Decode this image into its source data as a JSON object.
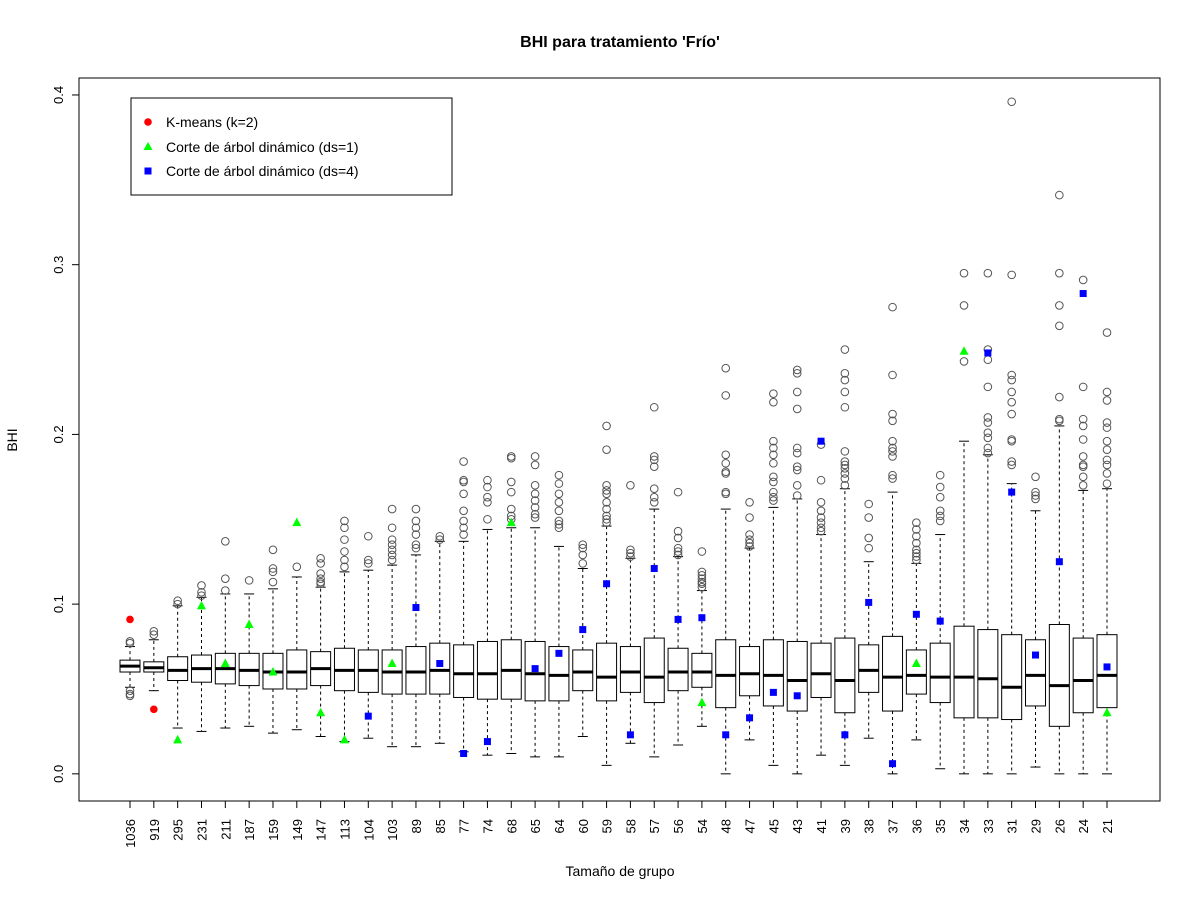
{
  "chart_data": {
    "type": "boxplot",
    "title": "BHI para tratamiento 'Frío'",
    "xlabel": "Tamaño de grupo",
    "ylabel": "BHI",
    "ylim": [
      -0.016,
      0.41
    ],
    "yticks": [
      0.0,
      0.1,
      0.2,
      0.3,
      0.4
    ],
    "ytick_labels": [
      "0.0",
      "0.1",
      "0.2",
      "0.3",
      "0.4"
    ],
    "legend": {
      "position": "top-left",
      "entries": [
        {
          "label": "K-means (k=2)",
          "marker": "circle",
          "color": "#ff0000"
        },
        {
          "label": "Corte de árbol dinámico (ds=1)",
          "marker": "triangle",
          "color": "#00ff00"
        },
        {
          "label": "Corte de árbol dinámico (ds=4)",
          "marker": "square",
          "color": "#0000ff"
        }
      ]
    },
    "colors": {
      "kmeans": "#ff0000",
      "ds1": "#00ff00",
      "ds4": "#0000ff",
      "box": "#000000"
    },
    "categories": [
      "1036",
      "919",
      "295",
      "231",
      "211",
      "187",
      "159",
      "149",
      "147",
      "113",
      "104",
      "103",
      "89",
      "85",
      "77",
      "74",
      "68",
      "65",
      "64",
      "60",
      "59",
      "58",
      "57",
      "56",
      "54",
      "48",
      "47",
      "45",
      "43",
      "41",
      "39",
      "38",
      "37",
      "36",
      "35",
      "34",
      "33",
      "31",
      "29",
      "26",
      "24",
      "21"
    ],
    "boxes": [
      {
        "wlo": 0.051,
        "q1": 0.06,
        "med": 0.0635,
        "q3": 0.067,
        "whi": 0.075,
        "out": [
          0.078,
          0.077,
          0.049,
          0.047,
          0.046
        ]
      },
      {
        "wlo": 0.049,
        "q1": 0.06,
        "med": 0.0625,
        "q3": 0.066,
        "whi": 0.079,
        "out": [
          0.084,
          0.082
        ]
      },
      {
        "wlo": 0.027,
        "q1": 0.055,
        "med": 0.061,
        "q3": 0.069,
        "whi": 0.099,
        "out": [
          0.102,
          0.1
        ]
      },
      {
        "wlo": 0.025,
        "q1": 0.054,
        "med": 0.062,
        "q3": 0.07,
        "whi": 0.104,
        "out": [
          0.111,
          0.107,
          0.105
        ]
      },
      {
        "wlo": 0.027,
        "q1": 0.053,
        "med": 0.062,
        "q3": 0.071,
        "whi": 0.106,
        "out": [
          0.137,
          0.115,
          0.108
        ]
      },
      {
        "wlo": 0.028,
        "q1": 0.052,
        "med": 0.061,
        "q3": 0.071,
        "whi": 0.106,
        "out": [
          0.114
        ]
      },
      {
        "wlo": 0.024,
        "q1": 0.05,
        "med": 0.06,
        "q3": 0.071,
        "whi": 0.109,
        "out": [
          0.132,
          0.121,
          0.119,
          0.113
        ]
      },
      {
        "wlo": 0.026,
        "q1": 0.05,
        "med": 0.06,
        "q3": 0.073,
        "whi": 0.116,
        "out": [
          0.122
        ]
      },
      {
        "wlo": 0.022,
        "q1": 0.052,
        "med": 0.062,
        "q3": 0.072,
        "whi": 0.11,
        "out": [
          0.127,
          0.124,
          0.118,
          0.115,
          0.113,
          0.112
        ]
      },
      {
        "wlo": 0.019,
        "q1": 0.049,
        "med": 0.061,
        "q3": 0.074,
        "whi": 0.119,
        "out": [
          0.149,
          0.145,
          0.138,
          0.131,
          0.126,
          0.122
        ]
      },
      {
        "wlo": 0.021,
        "q1": 0.048,
        "med": 0.061,
        "q3": 0.073,
        "whi": 0.12,
        "out": [
          0.14,
          0.126,
          0.124
        ]
      },
      {
        "wlo": 0.016,
        "q1": 0.047,
        "med": 0.06,
        "q3": 0.073,
        "whi": 0.123,
        "out": [
          0.156,
          0.145,
          0.138,
          0.135,
          0.132,
          0.129,
          0.126
        ]
      },
      {
        "wlo": 0.016,
        "q1": 0.047,
        "med": 0.06,
        "q3": 0.075,
        "whi": 0.129,
        "out": [
          0.156,
          0.149,
          0.145,
          0.141,
          0.135,
          0.133
        ]
      },
      {
        "wlo": 0.018,
        "q1": 0.047,
        "med": 0.061,
        "q3": 0.077,
        "whi": 0.137,
        "out": [
          0.14,
          0.138
        ]
      },
      {
        "wlo": 0.013,
        "q1": 0.045,
        "med": 0.059,
        "q3": 0.076,
        "whi": 0.137,
        "out": [
          0.184,
          0.173,
          0.172,
          0.165,
          0.155,
          0.149,
          0.145,
          0.141
        ]
      },
      {
        "wlo": 0.011,
        "q1": 0.044,
        "med": 0.059,
        "q3": 0.078,
        "whi": 0.144,
        "out": [
          0.173,
          0.169,
          0.163,
          0.16,
          0.15
        ]
      },
      {
        "wlo": 0.012,
        "q1": 0.044,
        "med": 0.061,
        "q3": 0.079,
        "whi": 0.145,
        "out": [
          0.187,
          0.186,
          0.172,
          0.166,
          0.156,
          0.152,
          0.15
        ]
      },
      {
        "wlo": 0.01,
        "q1": 0.043,
        "med": 0.059,
        "q3": 0.078,
        "whi": 0.145,
        "out": [
          0.187,
          0.182,
          0.17,
          0.165,
          0.161,
          0.157,
          0.153,
          0.151
        ]
      },
      {
        "wlo": 0.01,
        "q1": 0.043,
        "med": 0.058,
        "q3": 0.075,
        "whi": 0.134,
        "out": [
          0.176,
          0.171,
          0.165,
          0.16,
          0.155,
          0.149,
          0.147,
          0.145
        ]
      },
      {
        "wlo": 0.022,
        "q1": 0.049,
        "med": 0.06,
        "q3": 0.073,
        "whi": 0.121,
        "out": [
          0.135,
          0.133,
          0.129,
          0.124
        ]
      },
      {
        "wlo": 0.005,
        "q1": 0.043,
        "med": 0.057,
        "q3": 0.077,
        "whi": 0.146,
        "out": [
          0.205,
          0.191,
          0.17,
          0.167,
          0.165,
          0.16,
          0.156,
          0.152,
          0.15,
          0.148
        ]
      },
      {
        "wlo": 0.018,
        "q1": 0.048,
        "med": 0.06,
        "q3": 0.075,
        "whi": 0.127,
        "out": [
          0.17,
          0.132,
          0.13,
          0.128
        ]
      },
      {
        "wlo": 0.01,
        "q1": 0.042,
        "med": 0.057,
        "q3": 0.08,
        "whi": 0.156,
        "out": [
          0.216,
          0.187,
          0.185,
          0.181,
          0.168,
          0.163,
          0.16
        ]
      },
      {
        "wlo": 0.017,
        "q1": 0.049,
        "med": 0.06,
        "q3": 0.074,
        "whi": 0.128,
        "out": [
          0.166,
          0.143,
          0.139,
          0.133,
          0.131,
          0.129
        ]
      },
      {
        "wlo": 0.028,
        "q1": 0.051,
        "med": 0.06,
        "q3": 0.071,
        "whi": 0.108,
        "out": [
          0.131,
          0.119,
          0.117,
          0.115,
          0.113,
          0.112,
          0.11
        ]
      },
      {
        "wlo": 0.0,
        "q1": 0.039,
        "med": 0.058,
        "q3": 0.079,
        "whi": 0.156,
        "out": [
          0.239,
          0.223,
          0.188,
          0.183,
          0.178,
          0.177,
          0.166,
          0.165
        ]
      },
      {
        "wlo": 0.02,
        "q1": 0.046,
        "med": 0.059,
        "q3": 0.075,
        "whi": 0.133,
        "out": [
          0.16,
          0.151,
          0.141,
          0.138,
          0.136,
          0.134
        ]
      },
      {
        "wlo": 0.005,
        "q1": 0.04,
        "med": 0.058,
        "q3": 0.079,
        "whi": 0.157,
        "out": [
          0.224,
          0.219,
          0.196,
          0.192,
          0.188,
          0.183,
          0.175,
          0.172,
          0.166,
          0.163,
          0.161
        ]
      },
      {
        "wlo": 0.0,
        "q1": 0.037,
        "med": 0.055,
        "q3": 0.078,
        "whi": 0.162,
        "out": [
          0.238,
          0.236,
          0.225,
          0.215,
          0.192,
          0.189,
          0.181,
          0.179,
          0.17,
          0.164
        ]
      },
      {
        "wlo": 0.011,
        "q1": 0.045,
        "med": 0.059,
        "q3": 0.077,
        "whi": 0.141,
        "out": [
          0.194,
          0.173,
          0.16,
          0.155,
          0.151,
          0.148,
          0.145,
          0.143
        ]
      },
      {
        "wlo": 0.005,
        "q1": 0.036,
        "med": 0.055,
        "q3": 0.08,
        "whi": 0.168,
        "out": [
          0.25,
          0.236,
          0.232,
          0.225,
          0.216,
          0.19,
          0.184,
          0.182,
          0.18,
          0.177,
          0.174,
          0.17
        ]
      },
      {
        "wlo": 0.021,
        "q1": 0.048,
        "med": 0.061,
        "q3": 0.076,
        "whi": 0.125,
        "out": [
          0.159,
          0.151,
          0.139,
          0.133
        ]
      },
      {
        "wlo": 0.0,
        "q1": 0.037,
        "med": 0.057,
        "q3": 0.081,
        "whi": 0.166,
        "out": [
          0.275,
          0.235,
          0.212,
          0.208,
          0.196,
          0.192,
          0.19,
          0.187,
          0.176,
          0.174
        ]
      },
      {
        "wlo": 0.02,
        "q1": 0.047,
        "med": 0.058,
        "q3": 0.073,
        "whi": 0.124,
        "out": [
          0.148,
          0.144,
          0.14,
          0.136,
          0.132,
          0.13,
          0.128,
          0.126
        ]
      },
      {
        "wlo": 0.003,
        "q1": 0.042,
        "med": 0.057,
        "q3": 0.077,
        "whi": 0.141,
        "out": [
          0.176,
          0.169,
          0.163,
          0.155,
          0.152,
          0.149
        ]
      },
      {
        "wlo": 0.0,
        "q1": 0.033,
        "med": 0.057,
        "q3": 0.087,
        "whi": 0.196,
        "out": [
          0.295,
          0.276,
          0.243
        ]
      },
      {
        "wlo": 0.0,
        "q1": 0.033,
        "med": 0.056,
        "q3": 0.085,
        "whi": 0.188,
        "out": [
          0.295,
          0.25,
          0.244,
          0.228,
          0.21,
          0.207,
          0.201,
          0.198,
          0.192,
          0.189
        ]
      },
      {
        "wlo": 0.0,
        "q1": 0.032,
        "med": 0.051,
        "q3": 0.082,
        "whi": 0.171,
        "out": [
          0.396,
          0.294,
          0.235,
          0.232,
          0.225,
          0.219,
          0.212,
          0.197,
          0.196,
          0.184,
          0.182
        ]
      },
      {
        "wlo": 0.004,
        "q1": 0.04,
        "med": 0.058,
        "q3": 0.079,
        "whi": 0.155,
        "out": [
          0.175,
          0.166,
          0.164,
          0.162
        ]
      },
      {
        "wlo": 0.0,
        "q1": 0.028,
        "med": 0.052,
        "q3": 0.088,
        "whi": 0.205,
        "out": [
          0.341,
          0.295,
          0.276,
          0.264,
          0.222,
          0.209,
          0.208
        ]
      },
      {
        "wlo": 0.0,
        "q1": 0.036,
        "med": 0.055,
        "q3": 0.08,
        "whi": 0.167,
        "out": [
          0.291,
          0.228,
          0.209,
          0.205,
          0.197,
          0.187,
          0.182,
          0.181,
          0.175,
          0.17
        ]
      },
      {
        "wlo": 0.0,
        "q1": 0.039,
        "med": 0.058,
        "q3": 0.082,
        "whi": 0.168,
        "out": [
          0.26,
          0.225,
          0.22,
          0.207,
          0.204,
          0.196,
          0.191,
          0.185,
          0.182,
          0.177,
          0.171
        ]
      }
    ],
    "kmeans_points": [
      {
        "category": "1036",
        "value": 0.091
      },
      {
        "category": "919",
        "value": 0.038
      }
    ],
    "ds1_points": [
      {
        "category": "295",
        "value": 0.02
      },
      {
        "category": "231",
        "value": 0.099
      },
      {
        "category": "211",
        "value": 0.065
      },
      {
        "category": "187",
        "value": 0.088
      },
      {
        "category": "159",
        "value": 0.06
      },
      {
        "category": "149",
        "value": 0.148
      },
      {
        "category": "147",
        "value": 0.036
      },
      {
        "category": "113",
        "value": 0.02
      },
      {
        "category": "103",
        "value": 0.065
      },
      {
        "category": "68",
        "value": 0.148
      },
      {
        "category": "54",
        "value": 0.042
      },
      {
        "category": "36",
        "value": 0.065
      },
      {
        "category": "34",
        "value": 0.249
      },
      {
        "category": "21",
        "value": 0.036
      }
    ],
    "ds4_points": [
      {
        "category": "104",
        "value": 0.034
      },
      {
        "category": "89",
        "value": 0.098
      },
      {
        "category": "85",
        "value": 0.065
      },
      {
        "category": "77",
        "value": 0.012
      },
      {
        "category": "74",
        "value": 0.019
      },
      {
        "category": "65",
        "value": 0.062
      },
      {
        "category": "64",
        "value": 0.071
      },
      {
        "category": "60",
        "value": 0.085
      },
      {
        "category": "59",
        "value": 0.112
      },
      {
        "category": "58",
        "value": 0.023
      },
      {
        "category": "57",
        "value": 0.121
      },
      {
        "category": "56",
        "value": 0.091
      },
      {
        "category": "54",
        "value": 0.092
      },
      {
        "category": "48",
        "value": 0.023
      },
      {
        "category": "47",
        "value": 0.033
      },
      {
        "category": "45",
        "value": 0.048
      },
      {
        "category": "43",
        "value": 0.046
      },
      {
        "category": "41",
        "value": 0.196
      },
      {
        "category": "39",
        "value": 0.023
      },
      {
        "category": "38",
        "value": 0.101
      },
      {
        "category": "37",
        "value": 0.006
      },
      {
        "category": "36",
        "value": 0.094
      },
      {
        "category": "35",
        "value": 0.09
      },
      {
        "category": "33",
        "value": 0.248
      },
      {
        "category": "31",
        "value": 0.166
      },
      {
        "category": "29",
        "value": 0.07
      },
      {
        "category": "26",
        "value": 0.125
      },
      {
        "category": "24",
        "value": 0.283
      },
      {
        "category": "21",
        "value": 0.063
      }
    ]
  }
}
